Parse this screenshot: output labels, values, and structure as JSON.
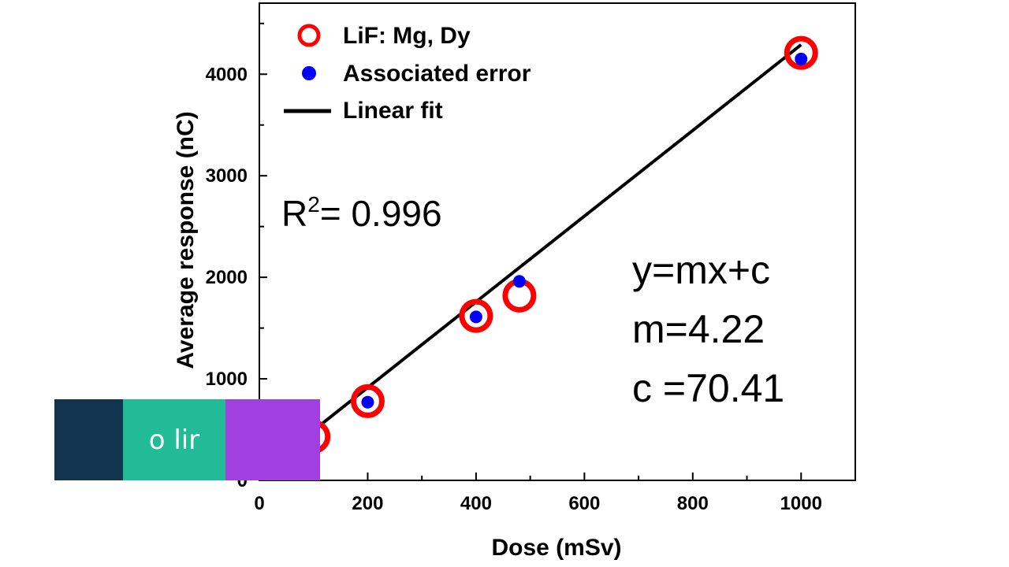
{
  "chart_data": {
    "type": "scatter",
    "title": "",
    "xlabel": "Dose (mSv)",
    "ylabel": "Average response (nC)",
    "xlim": [
      0,
      1100
    ],
    "ylim": [
      0,
      4700
    ],
    "xticks": [
      0,
      200,
      400,
      600,
      800,
      1000
    ],
    "yticks": [
      0,
      1000,
      2000,
      3000,
      4000
    ],
    "legend_position": "top-left",
    "grid": false,
    "series": [
      {
        "name": "LiF: Mg, Dy",
        "marker": "open-circle",
        "color": "#ff0000",
        "x": [
          100,
          200,
          400,
          480,
          1000
        ],
        "y": [
          430,
          780,
          1620,
          1820,
          4210
        ]
      },
      {
        "name": "Associated error",
        "marker": "filled-dot",
        "color": "#0000ff",
        "x": [
          100,
          200,
          400,
          480,
          1000
        ],
        "y": [
          430,
          770,
          1610,
          1960,
          4150
        ]
      },
      {
        "name": "Linear fit",
        "type": "line",
        "color": "#000000",
        "x": [
          100,
          1000
        ],
        "y": [
          492.41,
          4290.41
        ]
      }
    ],
    "annotations": {
      "r2_label": "R",
      "r2_sup": "2",
      "r2_value": "= 0.996",
      "equation": "y=mx+c",
      "slope": "m=4.22",
      "intercept": "c =70.41"
    }
  },
  "overlay": {
    "text": "o lir",
    "colors": [
      "#12344f",
      "#21bb95",
      "#a23fe0"
    ]
  },
  "colors": {
    "axis": "#000000",
    "marker_ring": "#ff0000",
    "marker_dot": "#0000ff"
  }
}
